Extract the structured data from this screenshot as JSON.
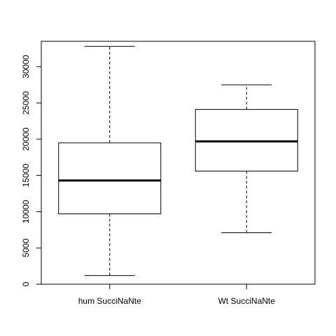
{
  "chart_data": {
    "type": "boxplot",
    "title": "",
    "xlabel": "",
    "ylabel": "",
    "categories": [
      "hum SucciNaNte",
      "Wt SucciNaNte"
    ],
    "boxes": [
      {
        "label": "hum SucciNaNte",
        "whisker_low": 1200,
        "q1": 9700,
        "median": 14300,
        "q3": 19500,
        "whisker_high": 32800
      },
      {
        "label": "Wt SucciNaNte",
        "whisker_low": 7100,
        "q1": 15600,
        "median": 19700,
        "q3": 24100,
        "whisker_high": 27500
      }
    ],
    "ylim": [
      0,
      33500
    ],
    "yticks": [
      0,
      5000,
      10000,
      15000,
      20000,
      25000,
      30000
    ],
    "grid": false,
    "colors": {
      "stroke": "#000000",
      "box_fill": "#ffffff",
      "background": "#ffffff"
    }
  }
}
